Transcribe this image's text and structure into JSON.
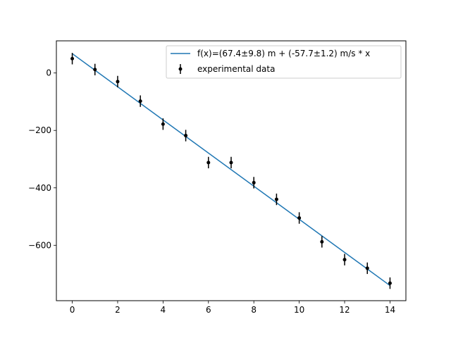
{
  "chart_data": {
    "type": "scatter",
    "title": "",
    "xlabel": "",
    "ylabel": "",
    "xlim": [
      -0.7,
      14.7
    ],
    "ylim": [
      -793,
      112
    ],
    "x_ticks": [
      0,
      2,
      4,
      6,
      8,
      10,
      12,
      14
    ],
    "y_ticks": [
      0,
      -200,
      -400,
      -600
    ],
    "x_tick_labels": [
      "0",
      "2",
      "4",
      "6",
      "8",
      "10",
      "12",
      "14"
    ],
    "y_tick_labels": [
      "0",
      "−200",
      "−400",
      "−600"
    ],
    "legend": {
      "position": "top-right",
      "entries": [
        {
          "label": "f(x)=(67.4±9.8) m + (-57.7±1.2) m/s * x",
          "kind": "line"
        },
        {
          "label": "experimental data",
          "kind": "errorbar"
        }
      ]
    },
    "series": [
      {
        "name": "f(x)=(67.4±9.8) m + (-57.7±1.2) m/s * x",
        "kind": "line",
        "color": "#1f77b4",
        "x": [
          0,
          14
        ],
        "y": [
          67.4,
          -740.4
        ]
      },
      {
        "name": "experimental data",
        "kind": "errorbar",
        "color": "#000000",
        "x": [
          0,
          1,
          2,
          3,
          4,
          5,
          6,
          7,
          8,
          9,
          10,
          11,
          12,
          13,
          14
        ],
        "y": [
          50,
          12,
          -30,
          -98,
          -178,
          -218,
          -312,
          -312,
          -382,
          -440,
          -505,
          -588,
          -650,
          -680,
          -732
        ],
        "yerr": [
          20,
          20,
          20,
          20,
          20,
          20,
          20,
          20,
          20,
          20,
          20,
          20,
          20,
          20,
          20
        ]
      }
    ]
  }
}
